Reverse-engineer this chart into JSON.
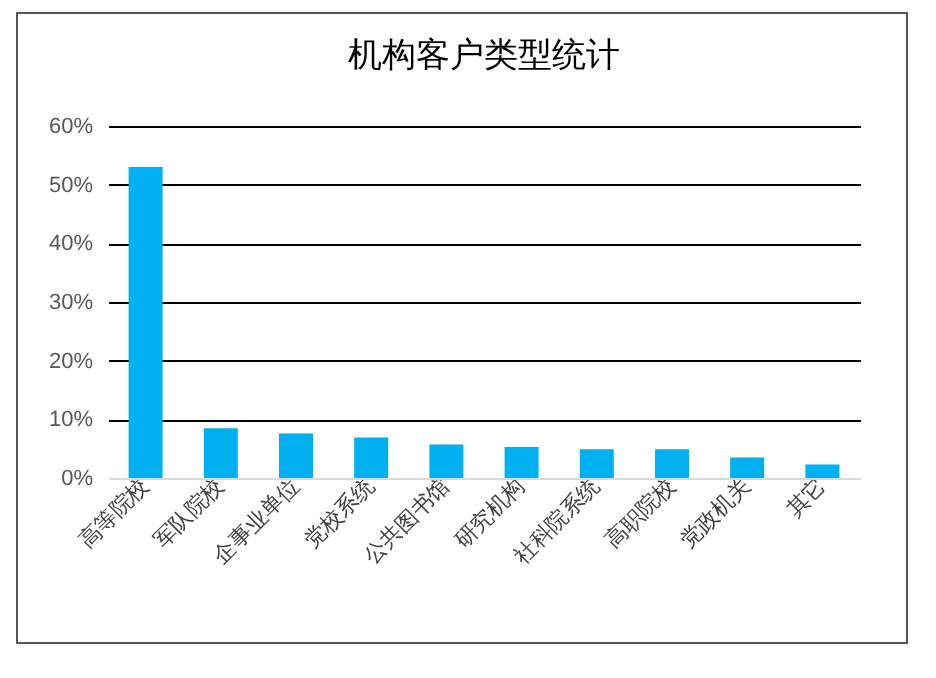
{
  "chart_data": {
    "type": "bar",
    "title": "机构客户类型统计",
    "categories": [
      "高等院校",
      "军队院校",
      "企事业单位",
      "党校系统",
      "公共图书馆",
      "研究机构",
      "社科院系统",
      "高职院校",
      "党政机关",
      "其它"
    ],
    "values": [
      53.0,
      8.5,
      7.6,
      6.9,
      5.7,
      5.3,
      4.9,
      4.9,
      3.5,
      2.3
    ],
    "color": "#00b0f0",
    "ylim": [
      0,
      60
    ],
    "yticks": [
      {
        "value": 0,
        "label": "0%"
      },
      {
        "value": 10,
        "label": "10%"
      },
      {
        "value": 20,
        "label": "20%"
      },
      {
        "value": 30,
        "label": "30%"
      },
      {
        "value": 40,
        "label": "40%"
      },
      {
        "value": 50,
        "label": "50%"
      },
      {
        "value": 60,
        "label": "60%"
      }
    ],
    "grid": "y"
  }
}
